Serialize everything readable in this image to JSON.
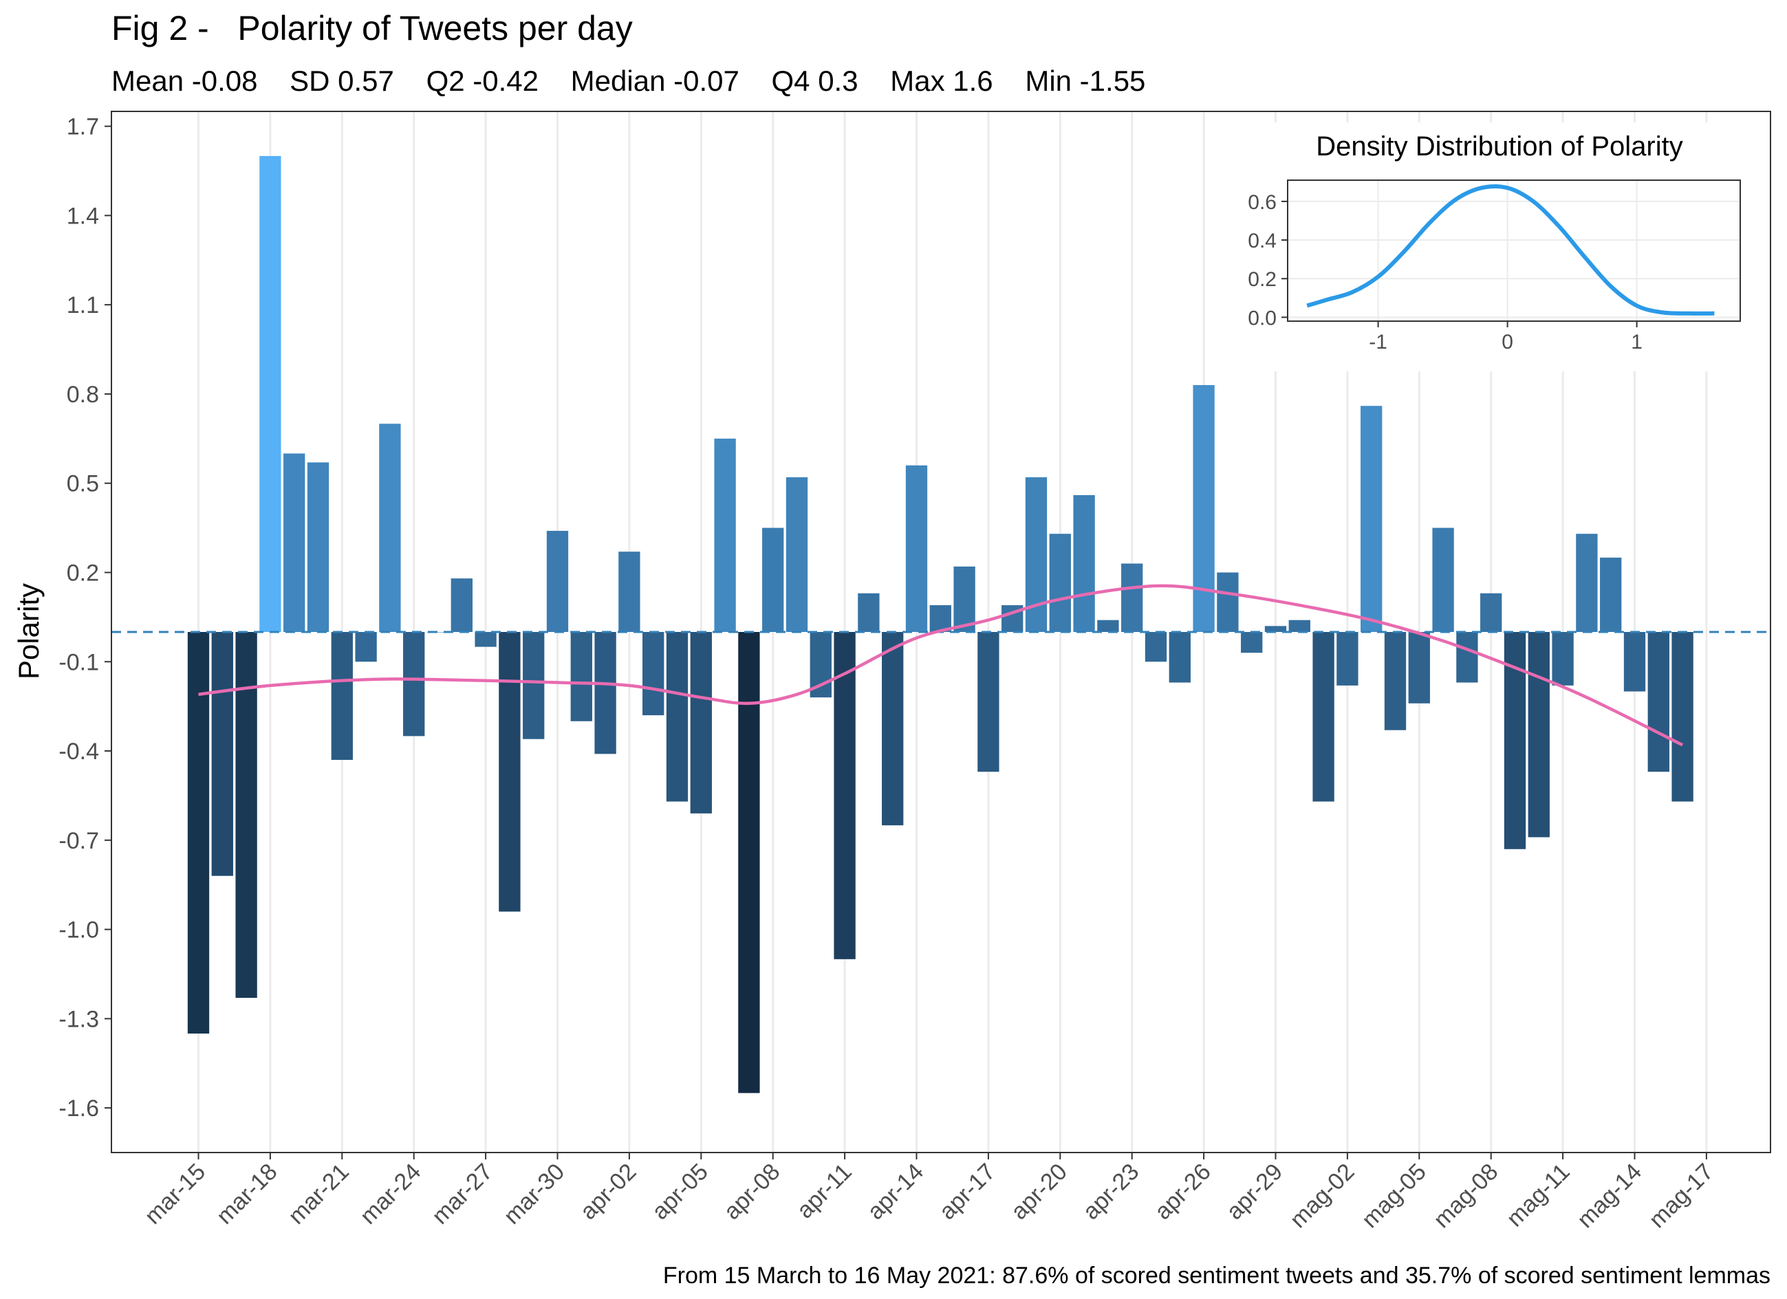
{
  "chart_data": [
    {
      "type": "bar",
      "title": "Fig 2 -   Polarity of Tweets per day",
      "subtitle": "Mean -0.08    SD 0.57    Q2 -0.42    Median -0.07    Q4 0.3    Max 1.6    Min -1.55",
      "ylabel": "Polarity",
      "xlabel": "",
      "caption": "From 15 March to 16 May 2021: 87.6% of scored sentiment tweets and 35.7% of scored sentiment lemmas",
      "ylim": [
        -1.75,
        1.75
      ],
      "yticks": [
        1.7,
        1.4,
        1.1,
        0.8,
        0.5,
        0.2,
        -0.1,
        -0.4,
        -0.7,
        -1.0,
        -1.3,
        -1.6
      ],
      "ytick_labels": [
        "1.7",
        "1.4",
        "1.1",
        "0.8",
        "0.5",
        "0.2",
        "-0.1",
        "-0.4",
        "-0.7",
        "-1.0",
        "-1.3",
        "-1.6"
      ],
      "xtick_labels": [
        "mar-15",
        "mar-18",
        "mar-21",
        "mar-24",
        "mar-27",
        "mar-30",
        "apr-02",
        "apr-05",
        "apr-08",
        "apr-11",
        "apr-14",
        "apr-17",
        "apr-20",
        "apr-23",
        "apr-26",
        "apr-29",
        "mag-02",
        "mag-05",
        "mag-08",
        "mag-11",
        "mag-14",
        "mag-17"
      ],
      "x_start": "2021-03-15",
      "x_end": "2021-05-16",
      "reference_line": {
        "y": 0,
        "style": "dashed",
        "color": "#3182bd"
      },
      "values": [
        -1.35,
        -0.82,
        -1.23,
        1.6,
        0.6,
        0.57,
        -0.43,
        -0.1,
        0.7,
        -0.35,
        0.0,
        0.18,
        -0.05,
        -0.94,
        -0.36,
        0.34,
        -0.3,
        -0.41,
        0.27,
        -0.28,
        -0.57,
        -0.61,
        0.65,
        -1.55,
        0.35,
        0.52,
        -0.22,
        -1.1,
        0.13,
        -0.65,
        0.56,
        0.09,
        0.22,
        -0.47,
        0.09,
        0.52,
        0.33,
        0.46,
        0.04,
        0.23,
        -0.1,
        -0.17,
        0.83,
        0.2,
        -0.07,
        0.02,
        0.04,
        -0.57,
        -0.18,
        0.76,
        -0.33,
        -0.24,
        0.35,
        -0.17,
        0.13,
        -0.73,
        -0.69,
        -0.18,
        0.33,
        0.25,
        -0.2,
        -0.47,
        -0.57
      ],
      "color_scale": {
        "low": "#132b43",
        "high": "#56b1f7"
      },
      "smooth_line": {
        "color": "#e86bb0",
        "x": [
          "2021-03-15",
          "2021-03-18",
          "2021-03-22",
          "2021-03-25",
          "2021-03-30",
          "2021-04-02",
          "2021-04-05",
          "2021-04-07",
          "2021-04-09",
          "2021-04-11",
          "2021-04-14",
          "2021-04-17",
          "2021-04-20",
          "2021-04-24",
          "2021-04-27",
          "2021-04-30",
          "2021-05-03",
          "2021-05-06",
          "2021-05-09",
          "2021-05-12",
          "2021-05-16"
        ],
        "y": [
          -0.21,
          -0.18,
          -0.16,
          -0.16,
          -0.17,
          -0.18,
          -0.22,
          -0.24,
          -0.21,
          -0.14,
          -0.02,
          0.04,
          0.11,
          0.155,
          0.13,
          0.09,
          0.04,
          -0.03,
          -0.12,
          -0.22,
          -0.38
        ]
      }
    },
    {
      "type": "line",
      "title": "Density Distribution of Polarity",
      "xlim": [
        -1.7,
        1.8
      ],
      "ylim": [
        -0.02,
        0.71
      ],
      "xticks": [
        -1,
        0,
        1
      ],
      "xtick_labels": [
        "-1",
        "0",
        "1"
      ],
      "yticks": [
        0.0,
        0.2,
        0.4,
        0.6
      ],
      "ytick_labels": [
        "0.0",
        "0.2",
        "0.4",
        "0.6"
      ],
      "color": "#2b9ae8",
      "x": [
        -1.55,
        -1.4,
        -1.2,
        -1.0,
        -0.8,
        -0.6,
        -0.4,
        -0.2,
        0.0,
        0.2,
        0.4,
        0.6,
        0.8,
        1.0,
        1.2,
        1.4,
        1.6
      ],
      "y": [
        0.06,
        0.09,
        0.13,
        0.21,
        0.34,
        0.49,
        0.61,
        0.67,
        0.67,
        0.6,
        0.47,
        0.31,
        0.16,
        0.06,
        0.025,
        0.02,
        0.02
      ]
    }
  ]
}
